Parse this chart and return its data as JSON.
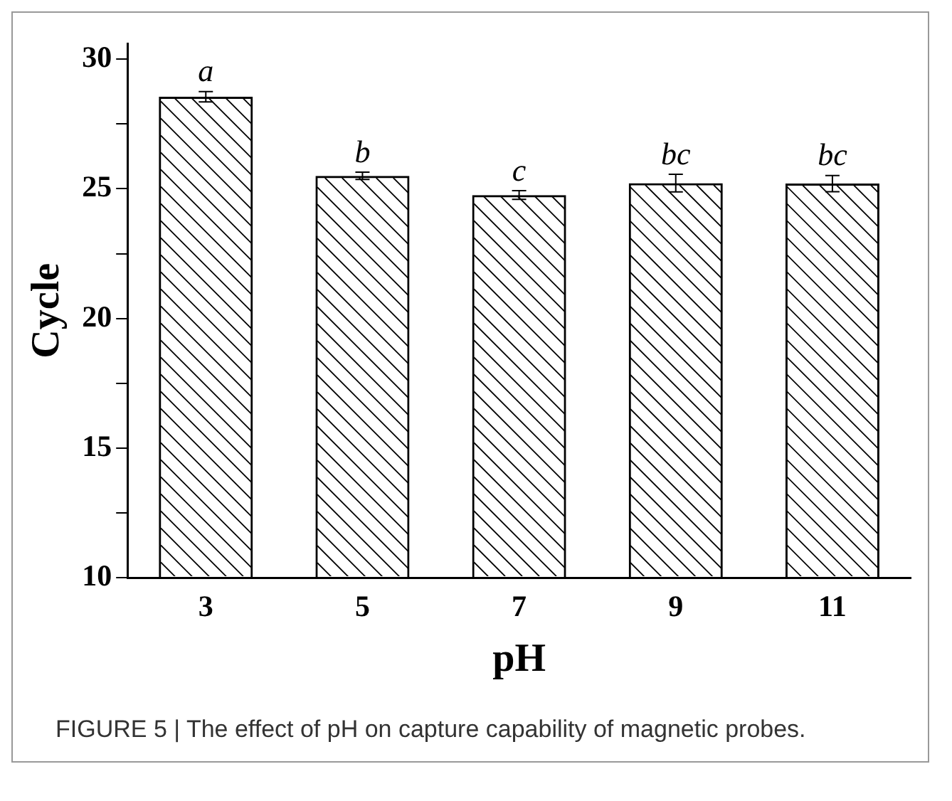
{
  "chart_data": {
    "type": "bar",
    "xlabel": "pH",
    "ylabel": "Cycle",
    "categories": [
      "3",
      "5",
      "7",
      "9",
      "11"
    ],
    "values": [
      28.55,
      25.5,
      24.76,
      25.22,
      25.2
    ],
    "errors": [
      0.2,
      0.14,
      0.17,
      0.34,
      0.31
    ],
    "color": "#000000",
    "ylim": [
      10,
      30.6
    ],
    "yticks": [
      10,
      {
        "value": 12.5,
        "label": null
      },
      15,
      {
        "value": 17.5,
        "label": null
      },
      20,
      {
        "value": 22.5,
        "label": null
      },
      25,
      {
        "value": 27.5,
        "label": null
      },
      30
    ],
    "grid": false,
    "legend": false,
    "annotations": [
      {
        "text": "a",
        "x": "3",
        "y": 28.75
      },
      {
        "text": "b",
        "x": "5",
        "y": 25.64
      },
      {
        "text": "c",
        "x": "7",
        "y": 24.93
      },
      {
        "text": "bc",
        "x": "9",
        "y": 25.56
      },
      {
        "text": "bc",
        "x": "11",
        "y": 25.51
      },
      "FIGURE 5 | The effect of pH on capture capability of magnetic probes."
    ]
  }
}
